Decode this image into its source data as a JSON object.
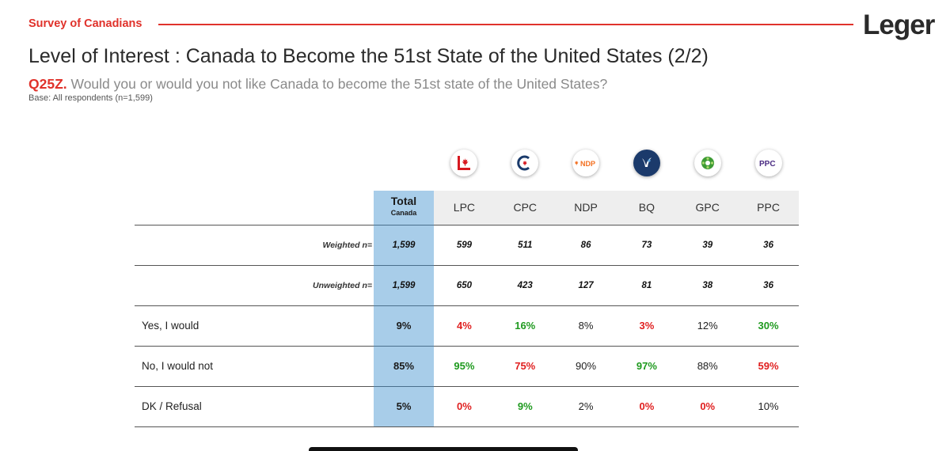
{
  "header": {
    "survey_label": "Survey of Canadians",
    "logo_text": "Leger",
    "accent_color": "#e0322b"
  },
  "title": "Level of Interest : Canada to Become the 51st State of the United States (2/2)",
  "question": {
    "id": "Q25Z.",
    "text": " Would you or would you not like Canada to become the 51st state of the United States?",
    "base": "Base: All respondents (n=1,599)"
  },
  "parties": [
    {
      "code": "LPC",
      "icon": "liberal-logo-icon",
      "logo_text": ""
    },
    {
      "code": "CPC",
      "icon": "conservative-logo-icon",
      "logo_text": ""
    },
    {
      "code": "NDP",
      "icon": "ndp-logo-icon",
      "logo_text": "NDP"
    },
    {
      "code": "BQ",
      "icon": "bloc-logo-icon",
      "logo_text": ""
    },
    {
      "code": "GPC",
      "icon": "green-logo-icon",
      "logo_text": ""
    },
    {
      "code": "PPC",
      "icon": "ppc-logo-icon",
      "logo_text": "PPC"
    }
  ],
  "table": {
    "total_label": "Total",
    "total_sublabel": "Canada",
    "columns": [
      "LPC",
      "CPC",
      "NDP",
      "BQ",
      "GPC",
      "PPC"
    ],
    "rows": [
      {
        "label": "Weighted n=",
        "total": "1,599",
        "values": [
          "599",
          "511",
          "86",
          "73",
          "39",
          "36"
        ],
        "styles": [
          "n",
          "n",
          "n",
          "n",
          "n",
          "n"
        ]
      },
      {
        "label": "Unweighted n=",
        "total": "1,599",
        "values": [
          "650",
          "423",
          "127",
          "81",
          "38",
          "36"
        ],
        "styles": [
          "n",
          "n",
          "n",
          "n",
          "n",
          "n"
        ]
      },
      {
        "label": "Yes, I would",
        "total": "9%",
        "values": [
          "4%",
          "16%",
          "8%",
          "3%",
          "12%",
          "30%"
        ],
        "styles": [
          "red",
          "green",
          "plain",
          "red",
          "plain",
          "green"
        ]
      },
      {
        "label": "No, I would not",
        "total": "85%",
        "values": [
          "95%",
          "75%",
          "90%",
          "97%",
          "88%",
          "59%"
        ],
        "styles": [
          "green",
          "red",
          "plain",
          "green",
          "plain",
          "red"
        ]
      },
      {
        "label": "DK / Refusal",
        "total": "5%",
        "values": [
          "0%",
          "9%",
          "2%",
          "0%",
          "0%",
          "10%"
        ],
        "styles": [
          "red",
          "green",
          "plain",
          "red",
          "red",
          "plain"
        ]
      }
    ]
  },
  "colors": {
    "total_column": "#a8cde9",
    "header_row": "#eeeeee",
    "significant_high": "#1f9a1f",
    "significant_low": "#e01f1f"
  }
}
